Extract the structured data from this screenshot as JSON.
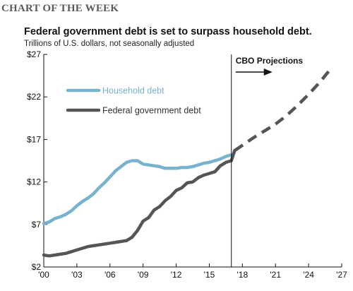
{
  "header": {
    "kicker": "CHART OF THE WEEK",
    "title": "Federal government debt is set to surpass household debt.",
    "subtitle": "Trillions of U.S. dollars, not seasonally adjusted"
  },
  "colors": {
    "household": "#77b3cf",
    "federal": "#555555",
    "axis": "#111111"
  },
  "chart_data": {
    "type": "line",
    "title": "Federal government debt is set to surpass household debt.",
    "ylabel": "Trillions of U.S. dollars, not seasonally adjusted",
    "xlim": [
      2000,
      2027
    ],
    "ylim": [
      2,
      27
    ],
    "x_ticks": [
      2000,
      2003,
      2006,
      2009,
      2012,
      2015,
      2018,
      2021,
      2024,
      2027
    ],
    "x_tick_labels": [
      "'00",
      "'03",
      "'06",
      "'09",
      "'12",
      "'15",
      "'18",
      "'21",
      "'24",
      "'27"
    ],
    "y_ticks": [
      2,
      7,
      12,
      17,
      22,
      27
    ],
    "y_tick_labels": [
      "$2",
      "$7",
      "$12",
      "$17",
      "$22",
      "$27"
    ],
    "grid": false,
    "legend_position": "top-left",
    "series": [
      {
        "name": "Household debt",
        "style": "solid",
        "points": [
          [
            2000.0,
            7.1
          ],
          [
            2000.5,
            7.3
          ],
          [
            2001.0,
            7.7
          ],
          [
            2001.5,
            7.9
          ],
          [
            2002.0,
            8.2
          ],
          [
            2002.5,
            8.6
          ],
          [
            2003.0,
            9.2
          ],
          [
            2003.5,
            9.7
          ],
          [
            2004.0,
            10.1
          ],
          [
            2004.5,
            10.6
          ],
          [
            2005.0,
            11.3
          ],
          [
            2005.5,
            11.9
          ],
          [
            2006.0,
            12.6
          ],
          [
            2006.5,
            13.3
          ],
          [
            2007.0,
            13.8
          ],
          [
            2007.5,
            14.3
          ],
          [
            2008.0,
            14.5
          ],
          [
            2008.5,
            14.5
          ],
          [
            2009.0,
            14.1
          ],
          [
            2009.5,
            14.0
          ],
          [
            2010.0,
            13.9
          ],
          [
            2010.5,
            13.8
          ],
          [
            2011.0,
            13.6
          ],
          [
            2011.5,
            13.6
          ],
          [
            2012.0,
            13.6
          ],
          [
            2012.5,
            13.7
          ],
          [
            2013.0,
            13.7
          ],
          [
            2013.5,
            13.8
          ],
          [
            2014.0,
            14.0
          ],
          [
            2014.5,
            14.2
          ],
          [
            2015.0,
            14.3
          ],
          [
            2015.5,
            14.5
          ],
          [
            2016.0,
            14.7
          ],
          [
            2016.5,
            15.0
          ],
          [
            2017.0,
            15.2
          ]
        ]
      },
      {
        "name": "Federal government debt",
        "style": "solid",
        "points": [
          [
            2000.0,
            3.4
          ],
          [
            2000.5,
            3.3
          ],
          [
            2001.0,
            3.4
          ],
          [
            2001.5,
            3.5
          ],
          [
            2002.0,
            3.6
          ],
          [
            2002.5,
            3.8
          ],
          [
            2003.0,
            4.0
          ],
          [
            2003.5,
            4.2
          ],
          [
            2004.0,
            4.4
          ],
          [
            2004.5,
            4.5
          ],
          [
            2005.0,
            4.6
          ],
          [
            2005.5,
            4.7
          ],
          [
            2006.0,
            4.8
          ],
          [
            2006.5,
            4.9
          ],
          [
            2007.0,
            5.0
          ],
          [
            2007.5,
            5.1
          ],
          [
            2008.0,
            5.5
          ],
          [
            2008.5,
            6.3
          ],
          [
            2009.0,
            7.4
          ],
          [
            2009.5,
            7.8
          ],
          [
            2010.0,
            8.7
          ],
          [
            2010.5,
            9.1
          ],
          [
            2011.0,
            9.8
          ],
          [
            2011.5,
            10.3
          ],
          [
            2012.0,
            11.0
          ],
          [
            2012.5,
            11.3
          ],
          [
            2013.0,
            11.9
          ],
          [
            2013.5,
            12.0
          ],
          [
            2014.0,
            12.5
          ],
          [
            2014.5,
            12.8
          ],
          [
            2015.0,
            13.0
          ],
          [
            2015.5,
            13.2
          ],
          [
            2016.0,
            13.9
          ],
          [
            2016.5,
            14.3
          ],
          [
            2017.0,
            14.5
          ],
          [
            2017.3,
            15.7
          ]
        ]
      },
      {
        "name": "CBO Projections",
        "style": "dashed",
        "points": [
          [
            2017.3,
            15.7
          ],
          [
            2018.0,
            16.3
          ],
          [
            2019.0,
            17.2
          ],
          [
            2020.0,
            18.0
          ],
          [
            2021.0,
            18.8
          ],
          [
            2022.0,
            19.8
          ],
          [
            2023.0,
            21.0
          ],
          [
            2024.0,
            22.3
          ],
          [
            2025.0,
            23.7
          ],
          [
            2026.0,
            25.3
          ]
        ]
      }
    ],
    "annotations": {
      "divider_x": 2017.0,
      "projection_label": "CBO Projections"
    }
  }
}
